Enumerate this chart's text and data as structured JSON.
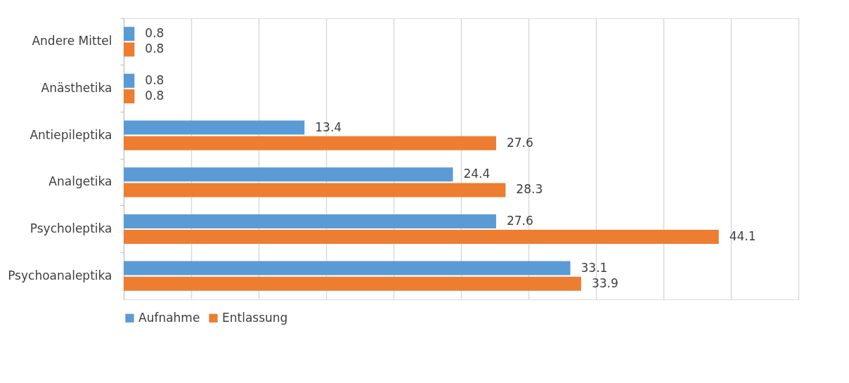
{
  "chart_data": {
    "type": "bar",
    "orientation": "horizontal",
    "categories": [
      "Andere Mittel",
      "Anästhetika",
      "Antiepileptika",
      "Analgetika",
      "Psycholeptika",
      "Psychoanaleptika"
    ],
    "series": [
      {
        "name": "Aufnahme",
        "color": "#5b9bd5",
        "values": [
          0.8,
          0.8,
          13.4,
          24.4,
          27.6,
          33.1
        ]
      },
      {
        "name": "Entlassung",
        "color": "#ed7d31",
        "values": [
          0.8,
          0.8,
          27.6,
          28.3,
          44.1,
          33.9
        ]
      }
    ],
    "xlim": [
      0,
      50
    ],
    "xticks": [
      {
        "value": 0,
        "label": null
      },
      {
        "value": 5,
        "label": null
      },
      {
        "value": 10,
        "label": null
      },
      {
        "value": 15,
        "label": null
      },
      {
        "value": 20,
        "label": null
      },
      {
        "value": 25,
        "label": null
      },
      {
        "value": 30,
        "label": null
      },
      {
        "value": 35,
        "label": null
      },
      {
        "value": 40,
        "label": null
      },
      {
        "value": 45,
        "label": null
      },
      {
        "value": 50,
        "label": null
      }
    ],
    "grid": "x",
    "data_labels": true,
    "legend": "bottom",
    "tick_labels": "y"
  }
}
